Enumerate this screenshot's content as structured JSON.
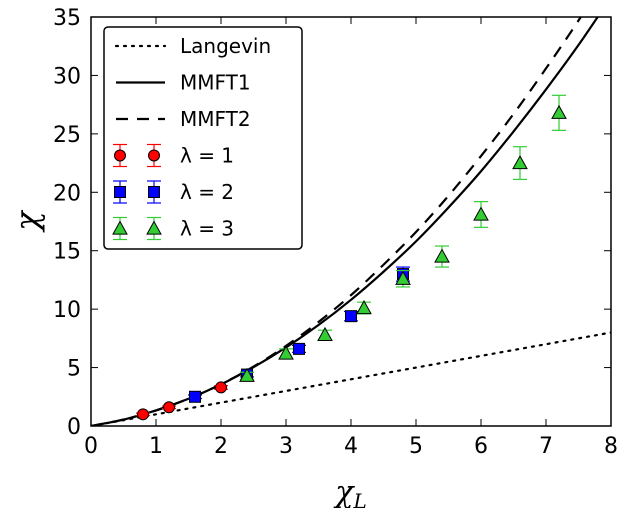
{
  "chart_data": {
    "type": "line",
    "title": "",
    "xlabel": "χ_L",
    "ylabel": "χ",
    "xlim": [
      0,
      8
    ],
    "ylim": [
      0,
      35
    ],
    "xticks": [
      "0",
      "1",
      "2",
      "3",
      "4",
      "5",
      "6",
      "7",
      "8"
    ],
    "yticks": [
      "0",
      "5",
      "10",
      "15",
      "20",
      "25",
      "30",
      "35"
    ],
    "grid": false,
    "legend_position": "top-left",
    "series": [
      {
        "name": "Langevin",
        "kind": "line",
        "style": "dotted",
        "color": "#000000",
        "x": [
          0,
          8
        ],
        "y": [
          0,
          8
        ]
      },
      {
        "name": "MMFT1",
        "kind": "line",
        "style": "solid",
        "color": "#000000",
        "x": [
          0,
          0.5,
          1,
          1.5,
          2,
          2.5,
          3,
          3.5,
          4,
          4.5,
          5,
          5.5,
          6,
          6.5,
          7,
          7.5,
          8
        ],
        "y": [
          0,
          0.55,
          1.33,
          2.33,
          3.56,
          5.03,
          6.72,
          8.64,
          10.8,
          13.2,
          15.8,
          18.7,
          21.8,
          25.2,
          28.8,
          32.6,
          36.7
        ]
      },
      {
        "name": "MMFT2",
        "kind": "line",
        "style": "dashed",
        "color": "#000000",
        "x": [
          0,
          0.5,
          1,
          1.5,
          2,
          2.5,
          3,
          3.5,
          4,
          4.5,
          5,
          5.5,
          6,
          6.5,
          7,
          7.5,
          8
        ],
        "y": [
          0,
          0.55,
          1.33,
          2.33,
          3.57,
          5.08,
          6.85,
          8.9,
          11.2,
          13.8,
          16.6,
          19.7,
          23.1,
          26.7,
          30.6,
          34.7,
          39.1
        ]
      },
      {
        "name": "λ = 1",
        "kind": "points",
        "marker": "circle",
        "color": "#ff0000",
        "x": [
          0.8,
          1.2,
          2.0
        ],
        "y": [
          1.0,
          1.6,
          3.3
        ],
        "err": [
          0.1,
          0.1,
          0.15
        ]
      },
      {
        "name": "λ = 2",
        "kind": "points",
        "marker": "square",
        "color": "#0000ff",
        "x": [
          1.6,
          2.4,
          3.2,
          4.0,
          4.8
        ],
        "y": [
          2.5,
          4.4,
          6.6,
          9.4,
          13.0
        ],
        "err": [
          0.15,
          0.2,
          0.3,
          0.4,
          0.6
        ]
      },
      {
        "name": "λ = 3",
        "kind": "points",
        "marker": "triangle",
        "color": "#33cc33",
        "x": [
          2.4,
          3.0,
          3.6,
          4.2,
          4.8,
          5.4,
          6.0,
          6.6,
          7.2
        ],
        "y": [
          4.3,
          6.2,
          7.8,
          10.1,
          12.6,
          14.5,
          18.1,
          22.5,
          26.8
        ],
        "err": [
          0.3,
          0.4,
          0.4,
          0.5,
          0.7,
          0.9,
          1.1,
          1.4,
          1.5
        ]
      }
    ]
  }
}
